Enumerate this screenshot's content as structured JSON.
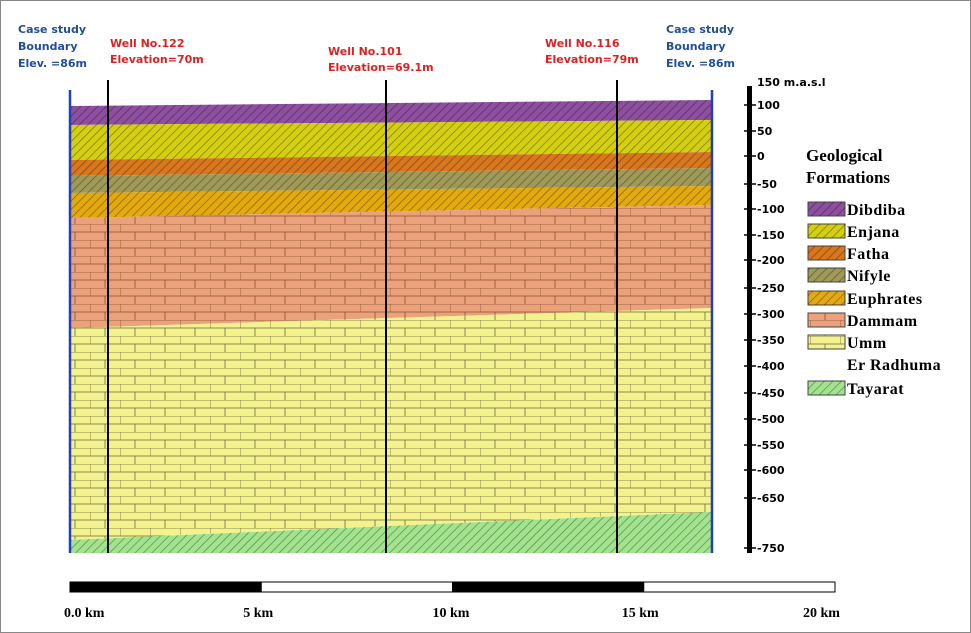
{
  "boundaries": [
    {
      "lines": [
        "Case study",
        "Boundary",
        "Elev. =86m"
      ]
    },
    {
      "lines": [
        "Case study",
        "Boundary",
        "Elev. =86m"
      ]
    }
  ],
  "wells": [
    {
      "name": "Well No.122",
      "elevation": "Elevation=70m"
    },
    {
      "name": "Well No.101",
      "elevation": "Elevation=69.1m"
    },
    {
      "name": "Well No.116",
      "elevation": "Elevation=79m"
    }
  ],
  "elevation_scale": {
    "unit_label": "150 m.a.s.l",
    "ticks": [
      "100",
      "50",
      "0",
      "-50",
      "-100",
      "-150",
      "-200",
      "-250",
      "-300",
      "-350",
      "-400",
      "-450",
      "-500",
      "-550",
      "-600",
      "-650",
      "-750"
    ]
  },
  "legend": {
    "title": [
      "Geological",
      "Formations"
    ],
    "items": [
      [
        "Dibdiba"
      ],
      [
        "Enjana"
      ],
      [
        "Fatha"
      ],
      [
        "Nifyle"
      ],
      [
        "Euphrates"
      ],
      [
        "Dammam"
      ],
      [
        "Umm",
        "Er Radhuma"
      ],
      [
        "Tayarat"
      ]
    ]
  },
  "distance_scale": [
    "0.0 km",
    "5 km",
    "10 km",
    "15 km",
    "20 km"
  ]
}
